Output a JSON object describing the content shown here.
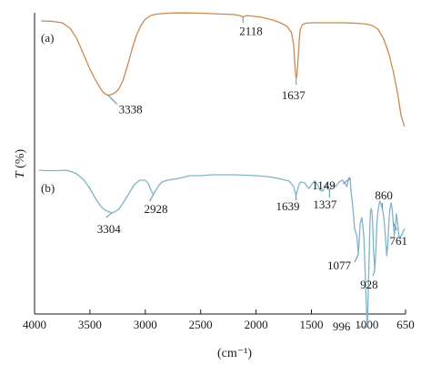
{
  "chart_data": {
    "type": "line",
    "xlabel": "(cm⁻¹)",
    "ylabel_letter": "T",
    "ylabel_unit": " (%)",
    "xlim": [
      4000,
      650
    ],
    "x_reversed": true,
    "x_ticks": [
      4000,
      3500,
      3000,
      2500,
      2000,
      1500,
      1000,
      650
    ],
    "x_tick_labels": [
      "4000",
      "3500",
      "3000",
      "2500",
      "2000",
      "1500",
      "1000",
      "650"
    ],
    "grid": false,
    "legend": "none",
    "series": [
      {
        "name": "(a)",
        "color": "#c98a52",
        "points": [
          [
            3940,
            9.0
          ],
          [
            3850,
            9.3
          ],
          [
            3750,
            11
          ],
          [
            3680,
            17
          ],
          [
            3620,
            28
          ],
          [
            3560,
            45
          ],
          [
            3500,
            62
          ],
          [
            3440,
            76
          ],
          [
            3390,
            86
          ],
          [
            3360,
            89.5
          ],
          [
            3338,
            90.5
          ],
          [
            3310,
            90
          ],
          [
            3280,
            88.5
          ],
          [
            3240,
            84
          ],
          [
            3200,
            74
          ],
          [
            3160,
            58
          ],
          [
            3120,
            40
          ],
          [
            3080,
            25
          ],
          [
            3040,
            14
          ],
          [
            3000,
            7
          ],
          [
            2950,
            3
          ],
          [
            2900,
            1.5
          ],
          [
            2800,
            0.5
          ],
          [
            2700,
            0.2
          ],
          [
            2600,
            0.3
          ],
          [
            2500,
            0.5
          ],
          [
            2400,
            1.0
          ],
          [
            2300,
            1.5
          ],
          [
            2200,
            2.0
          ],
          [
            2150,
            3.0
          ],
          [
            2118,
            4.5
          ],
          [
            2090,
            3.2
          ],
          [
            2050,
            3.5
          ],
          [
            1950,
            5.0
          ],
          [
            1850,
            8.0
          ],
          [
            1780,
            11
          ],
          [
            1720,
            15
          ],
          [
            1680,
            22
          ],
          [
            1660,
            35
          ],
          [
            1650,
            55
          ],
          [
            1643,
            68
          ],
          [
            1637,
            72
          ],
          [
            1630,
            68
          ],
          [
            1620,
            50
          ],
          [
            1610,
            30
          ],
          [
            1600,
            18
          ],
          [
            1580,
            13
          ],
          [
            1550,
            11.5
          ],
          [
            1500,
            11
          ],
          [
            1400,
            11
          ],
          [
            1300,
            11
          ],
          [
            1200,
            11
          ],
          [
            1100,
            11.5
          ],
          [
            1000,
            12.5
          ],
          [
            950,
            14
          ],
          [
            900,
            18
          ],
          [
            850,
            28
          ],
          [
            800,
            45
          ],
          [
            760,
            65
          ],
          [
            720,
            90
          ],
          [
            690,
            113
          ],
          [
            660,
            125
          ]
        ]
      },
      {
        "name": "(b)",
        "color": "#7fb4c8",
        "points": [
          [
            3960,
            150
          ],
          [
            3900,
            150.5
          ],
          [
            3800,
            150.5
          ],
          [
            3720,
            150
          ],
          [
            3680,
            151
          ],
          [
            3620,
            154
          ],
          [
            3560,
            160
          ],
          [
            3500,
            170
          ],
          [
            3450,
            181
          ],
          [
            3400,
            190
          ],
          [
            3360,
            194
          ],
          [
            3320,
            196
          ],
          [
            3304,
            197
          ],
          [
            3280,
            196
          ],
          [
            3240,
            193
          ],
          [
            3200,
            186
          ],
          [
            3150,
            176
          ],
          [
            3100,
            166
          ],
          [
            3050,
            161
          ],
          [
            3000,
            161
          ],
          [
            2970,
            165
          ],
          [
            2950,
            172
          ],
          [
            2928,
            177
          ],
          [
            2910,
            173
          ],
          [
            2880,
            167
          ],
          [
            2850,
            163
          ],
          [
            2800,
            161
          ],
          [
            2700,
            159
          ],
          [
            2600,
            156
          ],
          [
            2500,
            156
          ],
          [
            2400,
            155
          ],
          [
            2300,
            155
          ],
          [
            2200,
            155
          ],
          [
            2100,
            155.5
          ],
          [
            2000,
            156
          ],
          [
            1900,
            157
          ],
          [
            1800,
            159
          ],
          [
            1700,
            162
          ],
          [
            1660,
            168
          ],
          [
            1645,
            175
          ],
          [
            1639,
            178
          ],
          [
            1630,
            174
          ],
          [
            1615,
            167
          ],
          [
            1600,
            163
          ],
          [
            1560,
            164
          ],
          [
            1540,
            168
          ],
          [
            1520,
            170
          ],
          [
            1500,
            166
          ],
          [
            1470,
            162
          ],
          [
            1440,
            167
          ],
          [
            1420,
            172
          ],
          [
            1400,
            173
          ],
          [
            1380,
            170
          ],
          [
            1360,
            165
          ],
          [
            1337,
            172
          ],
          [
            1320,
            168
          ],
          [
            1300,
            166
          ],
          [
            1280,
            168
          ],
          [
            1250,
            163
          ],
          [
            1220,
            161
          ],
          [
            1200,
            164
          ],
          [
            1180,
            168
          ],
          [
            1170,
            162
          ],
          [
            1160,
            158
          ],
          [
            1150,
            159
          ],
          [
            1140,
            176
          ],
          [
            1130,
            185
          ],
          [
            1120,
            200
          ],
          [
            1110,
            214
          ],
          [
            1100,
            218
          ],
          [
            1090,
            222
          ],
          [
            1083,
            232
          ],
          [
            1077,
            243
          ],
          [
            1070,
            232
          ],
          [
            1060,
            208
          ],
          [
            1045,
            202
          ],
          [
            1035,
            212
          ],
          [
            1025,
            225
          ],
          [
            1010,
            280
          ],
          [
            1000,
            310
          ],
          [
            996,
            322
          ],
          [
            990,
            300
          ],
          [
            984,
            270
          ],
          [
            978,
            240
          ],
          [
            972,
            210
          ],
          [
            966,
            195
          ],
          [
            960,
            192
          ],
          [
            952,
            196
          ],
          [
            945,
            216
          ],
          [
            938,
            240
          ],
          [
            932,
            252
          ],
          [
            928,
            260
          ],
          [
            922,
            248
          ],
          [
            915,
            230
          ],
          [
            908,
            207
          ],
          [
            900,
            196
          ],
          [
            890,
            188
          ],
          [
            880,
            184
          ],
          [
            870,
            188
          ],
          [
            860,
            192
          ],
          [
            850,
            198
          ],
          [
            840,
            210
          ],
          [
            830,
            226
          ],
          [
            820,
            244
          ],
          [
            810,
            232
          ],
          [
            800,
            206
          ],
          [
            790,
            192
          ],
          [
            780,
            186
          ],
          [
            770,
            194
          ],
          [
            761,
            208
          ],
          [
            752,
            222
          ],
          [
            742,
            212
          ],
          [
            732,
            198
          ],
          [
            720,
            210
          ],
          [
            710,
            222
          ],
          [
            700,
            226
          ],
          [
            690,
            222
          ],
          [
            680,
            220
          ],
          [
            670,
            217
          ],
          [
            660,
            214
          ]
        ]
      }
    ],
    "annotations": [
      {
        "text": "3338",
        "series": "(a)",
        "x": 3338
      },
      {
        "text": "2118",
        "series": "(a)",
        "x": 2118
      },
      {
        "text": "1637",
        "series": "(a)",
        "x": 1637
      },
      {
        "text": "3304",
        "series": "(b)",
        "x": 3304
      },
      {
        "text": "2928",
        "series": "(b)",
        "x": 2928
      },
      {
        "text": "1639",
        "series": "(b)",
        "x": 1639
      },
      {
        "text": "1337",
        "series": "(b)",
        "x": 1337
      },
      {
        "text": "1149",
        "series": "(b)",
        "x": 1149
      },
      {
        "text": "1077",
        "series": "(b)",
        "x": 1077
      },
      {
        "text": "996",
        "series": "(b)",
        "x": 996
      },
      {
        "text": "928",
        "series": "(b)",
        "x": 928
      },
      {
        "text": "860",
        "series": "(b)",
        "x": 860
      },
      {
        "text": "761",
        "series": "(b)",
        "x": 761
      }
    ]
  }
}
